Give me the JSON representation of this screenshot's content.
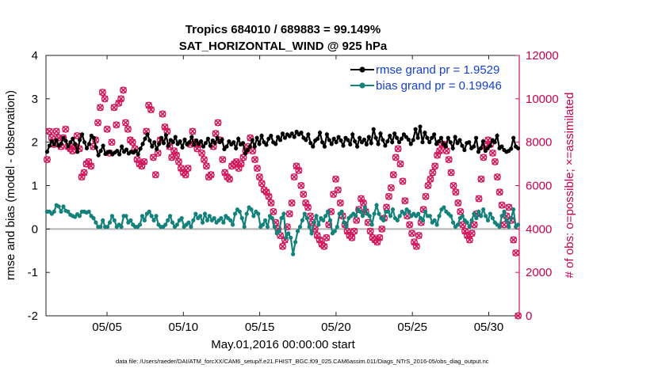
{
  "chart_data": {
    "type": "line",
    "title": "Tropics 684010 / 689883 = 99.149%",
    "subtitle": "SAT_HORIZONTAL_WIND @ 925 hPa",
    "xlabel": "May.01,2016 00:00:00 start",
    "ylabel": "rmse and bias (model - observation)",
    "y2label": "# of obs: o=possible; ×=assimilated",
    "footer": "data file: /Users/raeder/DAI/ATM_forcXX/CAM6_setup/f.e21.FHIST_BGC.f09_025.CAM6assim.011/Diags_NTrS_2016-05/obs_diag_output.nc",
    "xlim": [
      1,
      32
    ],
    "ylim": [
      -2,
      4
    ],
    "y2lim": [
      0,
      12000
    ],
    "x_ticks": [
      5,
      10,
      15,
      20,
      25,
      30
    ],
    "x_tick_labels": [
      "05/05",
      "05/10",
      "05/15",
      "05/20",
      "05/25",
      "05/30"
    ],
    "y_ticks": [
      -2,
      -1,
      0,
      1,
      2,
      3,
      4
    ],
    "y_tick_labels": [
      "-2",
      "-1",
      "0",
      "1",
      "2",
      "3",
      "4"
    ],
    "y2_ticks": [
      0,
      2000,
      4000,
      6000,
      8000,
      10000,
      12000
    ],
    "y2_tick_labels": [
      "0",
      "2000",
      "4000",
      "6000",
      "8000",
      "10000",
      "12000"
    ],
    "legend": {
      "position": "top-right",
      "entries": [
        "rmse grand pr = 1.9529",
        "bias grand pr = 0.19946"
      ]
    },
    "colors": {
      "rmse": "#000000",
      "bias": "#12827a",
      "obs": "#d4145a",
      "zero_line": "#b0b0b0"
    },
    "series": [
      {
        "name": "rmse grand pr = 1.9529",
        "values": [
          1.78,
          1.92,
          2.02,
          1.95,
          2.05,
          1.92,
          1.97,
          2.1,
          2.03,
          1.9,
          2.0,
          2.08,
          1.96,
          1.78,
          2.05,
          2.18,
          2.0,
          1.86,
          1.96,
          2.15,
          2.1,
          1.88,
          1.7,
          1.8,
          1.92,
          1.73,
          1.77,
          1.78,
          1.72,
          1.76,
          1.8,
          1.72,
          1.9,
          1.78,
          1.83,
          1.74,
          1.78,
          1.76,
          1.8,
          1.72,
          1.85,
          1.96,
          2.08,
          2.18,
          2.04,
          1.9,
          2.0,
          1.84,
          1.96,
          2.1,
          1.98,
          2.16,
          1.92,
          2.05,
          2.0,
          2.12,
          1.96,
          2.02,
          1.88,
          2.06,
          1.95,
          2.0,
          2.12,
          1.94,
          2.04,
          1.96,
          2.02,
          1.9,
          1.98,
          2.08,
          1.92,
          2.04,
          1.98,
          2.1,
          2.0,
          2.06,
          1.84,
          1.9,
          2.02,
          1.95,
          2.0,
          1.86,
          2.08,
          1.95,
          1.98,
          1.74,
          1.82,
          1.9,
          2.05,
          1.9,
          2.1,
          1.96,
          2.15,
          2.0,
          1.94,
          2.08,
          2.15,
          2.0,
          1.96,
          2.12,
          2.05,
          2.2,
          2.1,
          2.18,
          2.14,
          2.2,
          2.12,
          2.24,
          2.18,
          2.22,
          2.1,
          2.05,
          2.18,
          1.98,
          1.9,
          2.04,
          2.08,
          2.22,
          2.0,
          1.9,
          2.18,
          2.05,
          1.96,
          2.08,
          2.0,
          2.12,
          2.04,
          1.92,
          2.1,
          2.05,
          1.95,
          2.18,
          2.02,
          1.9,
          2.1,
          2.0,
          2.06,
          1.95,
          2.12,
          1.98,
          2.3,
          2.1,
          1.96,
          2.2,
          2.05,
          1.92,
          2.02,
          2.15,
          2.0,
          2.2,
          2.1,
          2.0,
          2.08,
          2.18,
          2.12,
          2.06,
          1.96,
          2.05,
          2.3,
          2.1,
          2.36,
          2.0,
          2.22,
          2.1,
          2.0,
          2.1,
          2.18,
          1.96,
          2.02,
          2.1,
          1.96,
          1.9,
          2.1,
          2.0,
          1.86,
          2.12,
          1.98,
          2.05,
          1.92,
          1.82,
          1.98,
          2.0,
          1.86,
          1.9,
          2.1,
          1.78,
          1.86,
          2.02,
          1.8,
          1.86,
          1.92,
          2.05,
          2.0,
          2.15,
          1.86,
          1.9,
          1.82,
          1.78,
          1.8,
          1.85,
          2.1,
          1.9,
          1.86
        ]
      },
      {
        "name": "bias grand pr = 0.19946",
        "values": [
          0.4,
          0.4,
          0.35,
          0.4,
          0.55,
          0.52,
          0.4,
          0.52,
          0.42,
          0.4,
          0.33,
          0.3,
          0.28,
          0.34,
          0.3,
          0.4,
          0.4,
          0.38,
          0.4,
          0.3,
          0.25,
          0.15,
          0.05,
          0.05,
          0.2,
          0.05,
          0.05,
          0.15,
          0.3,
          0.2,
          0.05,
          0.1,
          0.05,
          0.3,
          0.3,
          0.15,
          0.2,
          0.1,
          0.05,
          0.05,
          0.1,
          0.3,
          0.2,
          0.35,
          0.4,
          0.3,
          0.2,
          0.3,
          0.1,
          0.05,
          0.05,
          0.1,
          0.2,
          0.3,
          0.15,
          0.05,
          0.1,
          0.2,
          0.25,
          0.05,
          0.1,
          0.15,
          0.05,
          0.2,
          0.35,
          0.25,
          0.3,
          0.15,
          0.35,
          0.2,
          0.3,
          0.2,
          0.25,
          0.15,
          0.2,
          0.25,
          0.15,
          0.3,
          0.25,
          0.2,
          0.1,
          0.35,
          0.45,
          0.4,
          0.25,
          0.05,
          0.35,
          0.5,
          0.45,
          0.3,
          0.4,
          0.35,
          0.05,
          0.1,
          0.2,
          0.05,
          0.3,
          0.25,
          0.05,
          -0.1,
          -0.05,
          0.25,
          0.35,
          -0.2,
          -0.1,
          -0.2,
          -0.58,
          -0.3,
          -0.05,
          0.05,
          0.2,
          0.35,
          0.25,
          0.05,
          -0.1,
          0.15,
          0.3,
          0.1,
          0.25,
          0.2,
          0.3,
          0.4,
          0.2,
          -0.1,
          -0.05,
          0.05,
          0.35,
          0.4,
          0.15,
          0.05,
          0.25,
          0.3,
          0.35,
          0.3,
          0.45,
          0.4,
          0.3,
          0.5,
          0.35,
          0.3,
          0.1,
          0.35,
          0.55,
          0.35,
          0.25,
          0.2,
          0.4,
          0.4,
          0.3,
          0.45,
          0.25,
          0.2,
          0.3,
          0.4,
          0.35,
          0.45,
          0.4,
          0.3,
          0.35,
          0.3,
          0.35,
          0.25,
          0.2,
          0.4,
          0.3,
          0.3,
          0.15,
          0.2,
          0.1,
          0.3,
          0.45,
          0.5,
          0.4,
          0.35,
          0.3,
          0.15,
          0.05,
          0.1,
          0.25,
          0.3,
          0.2,
          0.15,
          0.05,
          0.2,
          0.35,
          0.25,
          0.4,
          0.3,
          0.45,
          0.3,
          0.2,
          0.35,
          0.25,
          0.15,
          0.1,
          0.05,
          0.3,
          0.4,
          0.2,
          0.05,
          0.25,
          0.45,
          0.05,
          0.1
        ]
      },
      {
        "name": "obs possible",
        "values": [
          7200,
          8500,
          8200,
          7900,
          8500,
          8200,
          7800,
          8200,
          8600,
          7800,
          7700,
          7600,
          7800,
          8300,
          7700,
          6400,
          6600,
          7000,
          7100,
          6900,
          7800,
          8100,
          8900,
          9600,
          10300,
          10000,
          8600,
          7500,
          8000,
          9600,
          8800,
          9800,
          10000,
          10400,
          8900,
          8600,
          8100,
          8000,
          7700,
          7200,
          7000,
          6900,
          7100,
          8500,
          9700,
          9500,
          7300,
          6500,
          7500,
          8100,
          9300,
          8700,
          8500,
          7800,
          7300,
          7600,
          7400,
          7100,
          6800,
          6600,
          6500,
          6800,
          7900,
          8500,
          8000,
          7700,
          7900,
          7500,
          7200,
          6900,
          6400,
          6500,
          7800,
          8400,
          8900,
          8100,
          7200,
          6600,
          6400,
          6300,
          6900,
          7000,
          7100,
          6800,
          7000,
          7300,
          7600,
          7800,
          8200,
          7600,
          7200,
          6800,
          6400,
          6100,
          5800,
          5700,
          5500,
          5200,
          4800,
          4300,
          4000,
          3700,
          3200,
          3500,
          4100,
          4700,
          5200,
          6400,
          6900,
          6700,
          6000,
          5600,
          5200,
          5000,
          4600,
          4300,
          4000,
          3700,
          3500,
          3300,
          3200,
          3600,
          4200,
          4800,
          5600,
          6300,
          5800,
          5200,
          4600,
          4200,
          3900,
          3700,
          3600,
          3900,
          4400,
          4900,
          5400,
          5200,
          4800,
          4300,
          3900,
          3600,
          3500,
          3400,
          3600,
          4000,
          4500,
          5000,
          5500,
          5900,
          6500,
          7300,
          7700,
          7000,
          6200,
          5300,
          4600,
          4200,
          3800,
          3400,
          3200,
          3700,
          4300,
          4900,
          5500,
          6000,
          6300,
          6600,
          6900,
          7400,
          7600,
          7900,
          7900,
          7600,
          7200,
          6600,
          6000,
          5700,
          5200,
          4800,
          4200,
          3900,
          3700,
          3500,
          3800,
          4200,
          4700,
          5400,
          6300,
          7300,
          7800,
          8100,
          7900,
          7500,
          7100,
          6400,
          5700,
          5100,
          4200,
          4600,
          5000,
          4400,
          3500,
          2900,
          0
        ]
      }
    ]
  }
}
